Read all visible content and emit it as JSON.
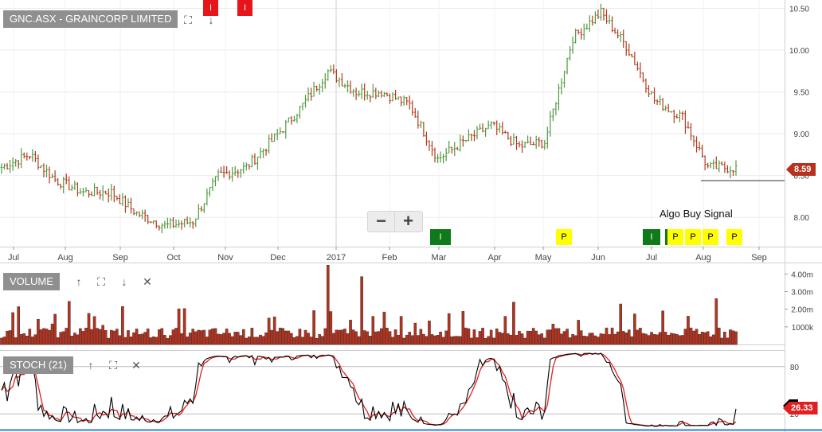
{
  "header": {
    "title": "GNC.ASX - GRAINCORP LIMITED"
  },
  "volume_panel": {
    "label": "VOLUME"
  },
  "stoch_panel": {
    "label": "STOCH (21)"
  },
  "annotation": {
    "algo": "Algo Buy Signal"
  },
  "last_price": "8.59",
  "stoch_last": "26.33",
  "colors": {
    "up": "#4e9a3e",
    "down": "#b23a1c",
    "volume": "#b5321f",
    "stoch_k": "#000000",
    "stoch_d": "#e02020",
    "label_bg": "#8f8f8f"
  },
  "icons": {
    "expand": "expand-icon",
    "arrow_up": "arrow-up-icon",
    "arrow_down": "arrow-down-icon",
    "close": "close-icon",
    "minus": "minus-icon",
    "plus": "plus-icon"
  },
  "zoom": {
    "minus": "−",
    "plus": "+"
  },
  "signals": [
    {
      "label": "I",
      "color": "red",
      "month": "Nov"
    },
    {
      "label": "I",
      "color": "red",
      "month": "Nov"
    },
    {
      "label": "I",
      "color": "green",
      "month": "Mar"
    },
    {
      "label": "P",
      "color": "yellow",
      "month": "May"
    },
    {
      "label": "I",
      "color": "green",
      "month": "Jul"
    },
    {
      "label": "P",
      "color": "yellow",
      "month": "Jul"
    },
    {
      "label": "P",
      "color": "yellow",
      "month": "Jul"
    },
    {
      "label": "P",
      "color": "yellow",
      "month": "Aug"
    },
    {
      "label": "P",
      "color": "yellow",
      "month": "Aug"
    }
  ],
  "chart_data": [
    {
      "type": "line",
      "name": "price-ohlc",
      "x_ticks": [
        "Jul",
        "Aug",
        "Sep",
        "Oct",
        "Nov",
        "Dec",
        "2017",
        "Feb",
        "Mar",
        "Apr",
        "May",
        "Jun",
        "Jul",
        "Aug",
        "Sep"
      ],
      "y_ticks": [
        "8.00",
        "8.50",
        "9.00",
        "9.50",
        "10.00",
        "10.50"
      ],
      "ylim": [
        7.65,
        10.6
      ],
      "support_level": 8.44,
      "series_points": [
        {
          "x": "Jul",
          "y": 8.6
        },
        {
          "x": "Jul",
          "y": 8.75
        },
        {
          "x": "Aug",
          "y": 8.45
        },
        {
          "x": "Aug",
          "y": 8.3
        },
        {
          "x": "Sep",
          "y": 8.3
        },
        {
          "x": "Sep",
          "y": 8.05
        },
        {
          "x": "Oct",
          "y": 7.9
        },
        {
          "x": "Oct",
          "y": 7.95
        },
        {
          "x": "Nov",
          "y": 8.5
        },
        {
          "x": "Nov",
          "y": 8.6
        },
        {
          "x": "Dec",
          "y": 8.95
        },
        {
          "x": "Dec",
          "y": 9.3
        },
        {
          "x": "2017",
          "y": 9.75
        },
        {
          "x": "2017",
          "y": 9.5
        },
        {
          "x": "Feb",
          "y": 9.5
        },
        {
          "x": "Feb",
          "y": 9.35
        },
        {
          "x": "Mar",
          "y": 8.7
        },
        {
          "x": "Mar",
          "y": 8.9
        },
        {
          "x": "Apr",
          "y": 9.1
        },
        {
          "x": "Apr",
          "y": 8.85
        },
        {
          "x": "May",
          "y": 8.9
        },
        {
          "x": "May",
          "y": 10.15
        },
        {
          "x": "Jun",
          "y": 10.45
        },
        {
          "x": "Jun",
          "y": 10.05
        },
        {
          "x": "Jul",
          "y": 9.4
        },
        {
          "x": "Jul",
          "y": 9.2
        },
        {
          "x": "Aug",
          "y": 8.6
        },
        {
          "x": "Aug",
          "y": 8.59
        }
      ]
    },
    {
      "type": "bar",
      "name": "volume",
      "y_ticks": [
        "1000k",
        "2.00m",
        "3.00m",
        "4.00m"
      ],
      "ylim": [
        0,
        4.6
      ],
      "unit": "m",
      "peaks": [
        {
          "month": "Aug",
          "value": 2.45
        },
        {
          "month": "Dec",
          "value": 4.5
        },
        {
          "month": "Dec",
          "value": 3.85
        },
        {
          "month": "Mar",
          "value": 2.4
        },
        {
          "month": "May",
          "value": 2.3
        },
        {
          "month": "Jun",
          "value": 2.6
        }
      ]
    },
    {
      "type": "line",
      "name": "stochastic",
      "y_ticks": [
        "20",
        "80"
      ],
      "ylim": [
        0,
        100
      ],
      "series": [
        {
          "name": "%K"
        },
        {
          "name": "%D"
        }
      ],
      "last": 26.33
    }
  ]
}
